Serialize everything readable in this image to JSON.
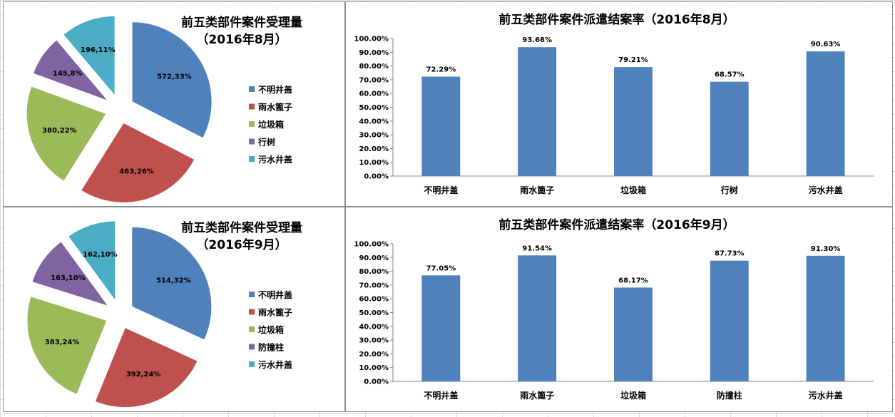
{
  "chart_data": [
    {
      "type": "pie",
      "title_lines": [
        "前五类部件案件受理量",
        "（2016年8月）"
      ],
      "legend_position": "right",
      "categories": [
        "不明井盖",
        "雨水篦子",
        "垃圾箱",
        "行树",
        "污水井盖"
      ],
      "values": [
        572,
        463,
        380,
        145,
        196
      ],
      "percent_labels": [
        "33%",
        "26%",
        "22%",
        "8%",
        "11%"
      ],
      "colors": [
        "#4F81BD",
        "#C0504D",
        "#9BBB59",
        "#8064A2",
        "#4BACC6"
      ]
    },
    {
      "type": "bar",
      "title": "前五类部件案件派遣结案率（2016年8月）",
      "categories": [
        "不明井盖",
        "雨水篦子",
        "垃圾箱",
        "行树",
        "污水井盖"
      ],
      "values": [
        72.29,
        93.68,
        79.21,
        68.57,
        90.63
      ],
      "ylim": [
        0,
        100
      ],
      "yticks": [
        "0.00%",
        "10.00%",
        "20.00%",
        "30.00%",
        "40.00%",
        "50.00%",
        "60.00%",
        "70.00%",
        "80.00%",
        "90.00%",
        "100.00%"
      ],
      "data_labels": [
        "72.29%",
        "93.68%",
        "79.21%",
        "68.57%",
        "90.63%"
      ],
      "color": "#4F81BD",
      "grid": false
    },
    {
      "type": "pie",
      "title_lines": [
        "前五类部件案件受理量",
        "（2016年9月）"
      ],
      "legend_position": "right",
      "categories": [
        "不明井盖",
        "雨水篦子",
        "垃圾箱",
        "防撞柱",
        "污水井盖"
      ],
      "values": [
        514,
        392,
        383,
        163,
        162
      ],
      "percent_labels": [
        "32%",
        "24%",
        "24%",
        "10%",
        "10%"
      ],
      "colors": [
        "#4F81BD",
        "#C0504D",
        "#9BBB59",
        "#8064A2",
        "#4BACC6"
      ]
    },
    {
      "type": "bar",
      "title": "前五类部件案件派遣结案率（2016年9月）",
      "categories": [
        "不明井盖",
        "雨水篦子",
        "垃圾箱",
        "防撞柱",
        "污水井盖"
      ],
      "values": [
        77.05,
        91.54,
        68.17,
        87.73,
        91.3
      ],
      "ylim": [
        0,
        100
      ],
      "yticks": [
        "0.00%",
        "10.00%",
        "20.00%",
        "30.00%",
        "40.00%",
        "50.00%",
        "60.00%",
        "70.00%",
        "80.00%",
        "90.00%",
        "100.00%"
      ],
      "data_labels": [
        "77.05%",
        "91.54%",
        "68.17%",
        "87.73%",
        "91.30%"
      ],
      "color": "#4F81BD",
      "grid": false
    }
  ]
}
